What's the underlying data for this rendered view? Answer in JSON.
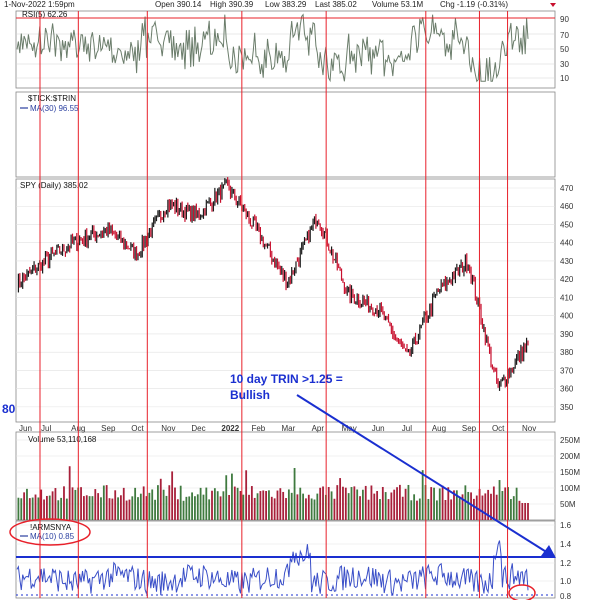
{
  "header": {
    "date_text": "1-Nov-2022 1:59pm",
    "open_text": "Open 390.14",
    "high_text": "High 390.39",
    "low_text": "Low 383.29",
    "last_text": "Last 385.02",
    "volume_text": "Volume 53.1M",
    "chg_text": "Chg -1.19 (-0.31%)"
  },
  "panels": {
    "rsi": {
      "label": "RSI(5) 62.26",
      "ticks": [
        "90",
        "70",
        "50",
        "30",
        "10"
      ]
    },
    "tick_trin": {
      "title": "$TICK:$TRIN",
      "ma_label": "MA(30) 96.55"
    },
    "spy": {
      "label": "SPY (Daily) 385.02",
      "ticks": [
        "470",
        "460",
        "450",
        "440",
        "430",
        "420",
        "410",
        "400",
        "390",
        "380",
        "370",
        "360",
        "350"
      ]
    },
    "volume": {
      "label": "Volume 53,110,168",
      "ticks": [
        "250M",
        "200M",
        "150M",
        "100M",
        "50M"
      ]
    },
    "armsnya": {
      "title": "!ARMSNYA",
      "ma_label": "MA(10) 0.85",
      "ticks": [
        "1.6",
        "1.4",
        "1.2",
        "1.0",
        "0.8"
      ]
    }
  },
  "x_axis": {
    "months": [
      "Jun",
      "Jul",
      "Aug",
      "Sep",
      "Oct",
      "Nov",
      "Dec",
      "2022",
      "Feb",
      "Mar",
      "Apr",
      "May",
      "Jun",
      "Jul",
      "Aug",
      "Sep",
      "Oct",
      "Nov"
    ]
  },
  "annotation": {
    "line1": "10 day TRIN >1.25 =",
    "line2": "Bullish"
  },
  "left_edge_label": "80",
  "colors": {
    "vline": "#e8202a",
    "annotation_blue": "#1a2fd0",
    "rsi_line": "#6b7d6b",
    "rsi_fill": "#a8a8a8",
    "price_up": "#1a1a1a",
    "price_down": "#c8102e",
    "vol_up": "#3f7a3f",
    "vol_down": "#a8203a",
    "trin_line": "#3a4fc8",
    "circle": "#e8202a"
  },
  "chart_data": [
    {
      "type": "line",
      "title": "RSI(5)",
      "ylim": [
        0,
        100
      ],
      "reference_lines": [
        90,
        70,
        30
      ],
      "last_value": 62.26
    },
    {
      "type": "line",
      "title": "$TICK:$TRIN",
      "series": [
        {
          "name": "MA(30)",
          "last_value": 96.55
        }
      ]
    },
    {
      "type": "line",
      "title": "SPY (Daily)",
      "ylim": [
        345,
        475
      ],
      "x": [
        "Jun 2021",
        "Jul 2021",
        "Aug 2021",
        "Sep 2021",
        "Oct 2021",
        "Nov 2021",
        "Dec 2021",
        "Jan 2022",
        "Feb 2022",
        "Mar 2022",
        "Apr 2022",
        "May 2022",
        "Jun 2022",
        "Jul 2022",
        "Aug 2022",
        "Sep 2022",
        "Oct 2022",
        "Nov 2022"
      ],
      "values": [
        417,
        431,
        441,
        447,
        434,
        461,
        455,
        471,
        446,
        418,
        455,
        412,
        404,
        377,
        413,
        430,
        360,
        385
      ],
      "last_value": 385.02
    },
    {
      "type": "bar",
      "title": "Volume",
      "ylim": [
        0,
        260000000
      ],
      "last_value": 53110168
    },
    {
      "type": "line",
      "title": "!ARMSNYA",
      "series": [
        {
          "name": "MA(10)",
          "last_value": 0.85
        }
      ],
      "ylim": [
        0.8,
        1.7
      ],
      "reference_lines": [
        1.25
      ]
    }
  ]
}
